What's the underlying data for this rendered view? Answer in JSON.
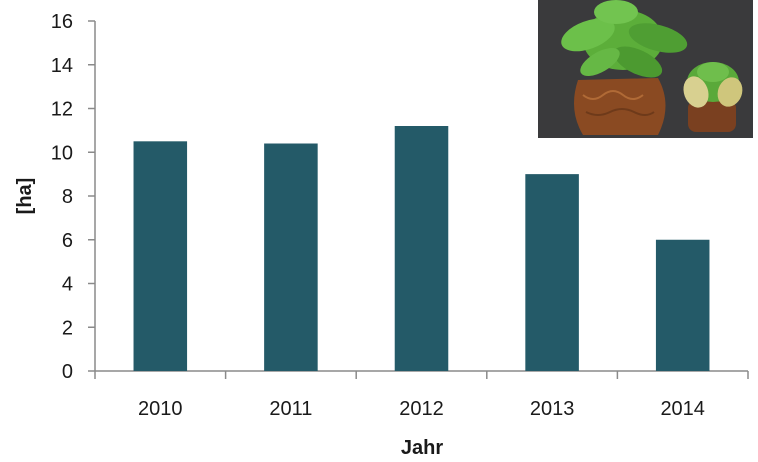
{
  "chart_data": {
    "type": "bar",
    "categories": [
      "2010",
      "2011",
      "2012",
      "2013",
      "2014"
    ],
    "values": [
      10.5,
      10.4,
      11.2,
      9.0,
      6.0
    ],
    "xlabel": "Jahr",
    "ylabel": "[ha]",
    "ylim": [
      0,
      16
    ],
    "yticks": [
      "0",
      "2",
      "4",
      "6",
      "8",
      "10",
      "12",
      "14",
      "16"
    ],
    "bar_color": "#245a68",
    "grid": false,
    "legend": "none"
  },
  "inset_image": {
    "subject": "lettuce-plants-photo",
    "background_color": "#3a3a3c",
    "foliage_color": "#5cae3a",
    "soil_color": "#8a4a22"
  }
}
